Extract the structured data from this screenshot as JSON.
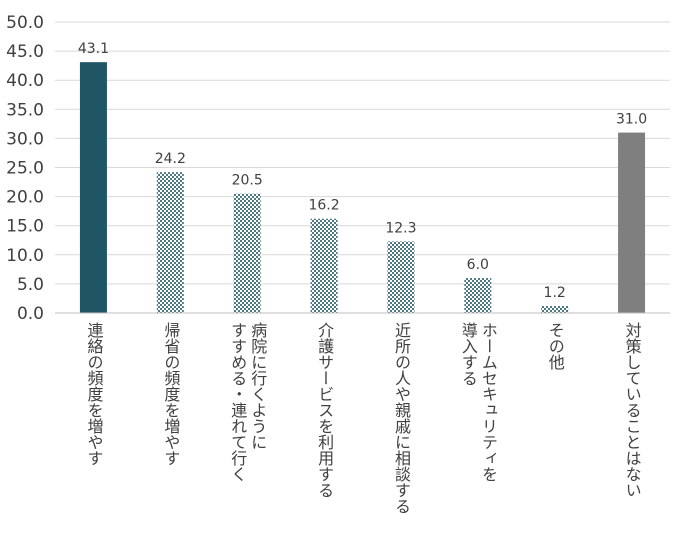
{
  "chart_data": {
    "type": "bar",
    "categories": [
      "連絡の頻度を増やす",
      "帰省の頻度を増やす",
      "病院に行くように\nすすめる・連れて行く",
      "介護サービスを利用する",
      "近所の人や親戚に相談する",
      "ホームセキュリティを\n導入する",
      "その他",
      "対策していることはない"
    ],
    "values": [
      43.1,
      24.2,
      20.5,
      16.2,
      12.3,
      6.0,
      1.2,
      31.0
    ],
    "value_labels": [
      "43.1",
      "24.2",
      "20.5",
      "16.2",
      "12.3",
      "6.0",
      "1.2",
      "31.0"
    ],
    "ylim": [
      0,
      50
    ],
    "yticks": [
      "0.0",
      "5.0",
      "10.0",
      "15.0",
      "20.0",
      "25.0",
      "30.0",
      "35.0",
      "40.0",
      "45.0",
      "50.0"
    ],
    "grid": true,
    "bar_styles": [
      "solid",
      "pattern",
      "pattern",
      "pattern",
      "pattern",
      "pattern",
      "pattern",
      "solid"
    ],
    "colors": {
      "first_bar": "#1f5565",
      "pattern_dark": "#4d7984",
      "pattern_light": "#ffffff",
      "last_bar": "#7f7f7f",
      "grid": "#d9d9d9",
      "axis": "#bfbfbf",
      "text": "#404040"
    }
  }
}
